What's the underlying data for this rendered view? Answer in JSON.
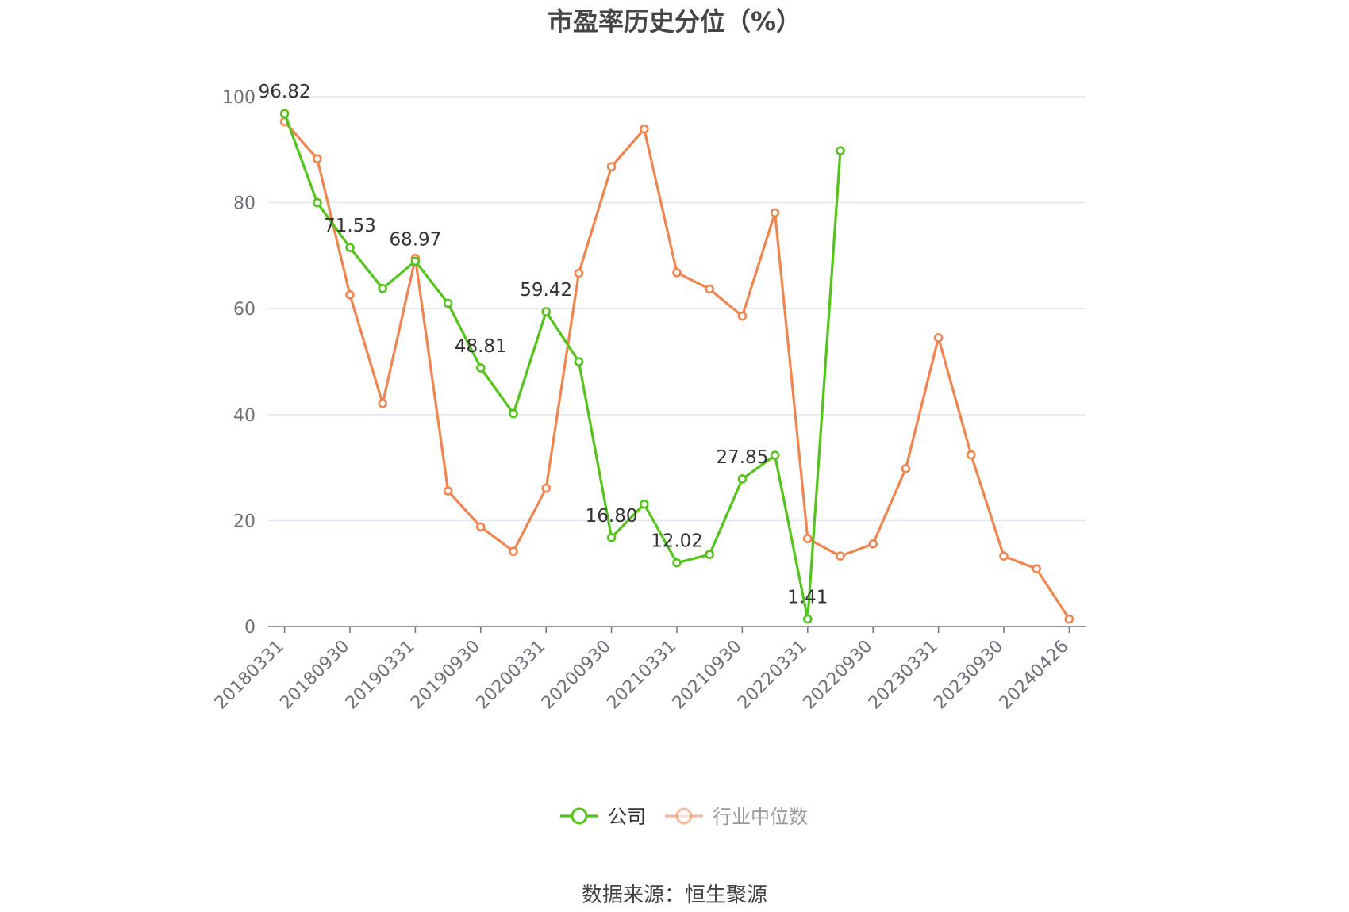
{
  "chart_data": {
    "type": "line",
    "title": "市盈率历史分位（%）",
    "ylim": [
      0,
      100
    ],
    "yticks": [
      0,
      20,
      40,
      60,
      80,
      100
    ],
    "grid": true,
    "legend_position": "bottom-center",
    "x": [
      "20180331",
      "20180630",
      "20180930",
      "20181231",
      "20190331",
      "20190630",
      "20190930",
      "20191231",
      "20200331",
      "20200630",
      "20200930",
      "20201231",
      "20210331",
      "20210630",
      "20210930",
      "20211231",
      "20220331",
      "20220630",
      "20220930",
      "20221231",
      "20230331",
      "20230630",
      "20230930",
      "20231231",
      "20240426"
    ],
    "x_tick_labels": [
      "20180331",
      "20180930",
      "20190331",
      "20190930",
      "20200331",
      "20200930",
      "20210331",
      "20210930",
      "20220331",
      "20220930",
      "20230331",
      "20230930",
      "20240426"
    ],
    "series": [
      {
        "name": "公司",
        "color": "#52c41a",
        "values": [
          96.82,
          80.0,
          71.53,
          63.8,
          68.97,
          61.0,
          48.81,
          40.2,
          59.42,
          50.0,
          16.8,
          23.1,
          12.02,
          13.6,
          27.85,
          32.3,
          1.41,
          89.8,
          null,
          null,
          null,
          null,
          null,
          null,
          null
        ],
        "data_labels": [
          {
            "index": 0,
            "text": "96.82"
          },
          {
            "index": 2,
            "text": "71.53"
          },
          {
            "index": 4,
            "text": "68.97"
          },
          {
            "index": 6,
            "text": "48.81"
          },
          {
            "index": 8,
            "text": "59.42"
          },
          {
            "index": 10,
            "text": "16.80"
          },
          {
            "index": 12,
            "text": "12.02"
          },
          {
            "index": 14,
            "text": "27.85"
          },
          {
            "index": 16,
            "text": "1.41"
          }
        ]
      },
      {
        "name": "行业中位数",
        "color": "#f0854f",
        "values": [
          95.3,
          88.3,
          62.6,
          42.1,
          69.5,
          25.6,
          18.8,
          14.2,
          26.1,
          66.7,
          86.8,
          93.9,
          66.8,
          63.7,
          58.6,
          78.1,
          16.6,
          13.3,
          15.6,
          29.8,
          54.5,
          32.4,
          13.3,
          10.9,
          1.4
        ]
      }
    ]
  },
  "source_text": "数据来源：恒生聚源"
}
